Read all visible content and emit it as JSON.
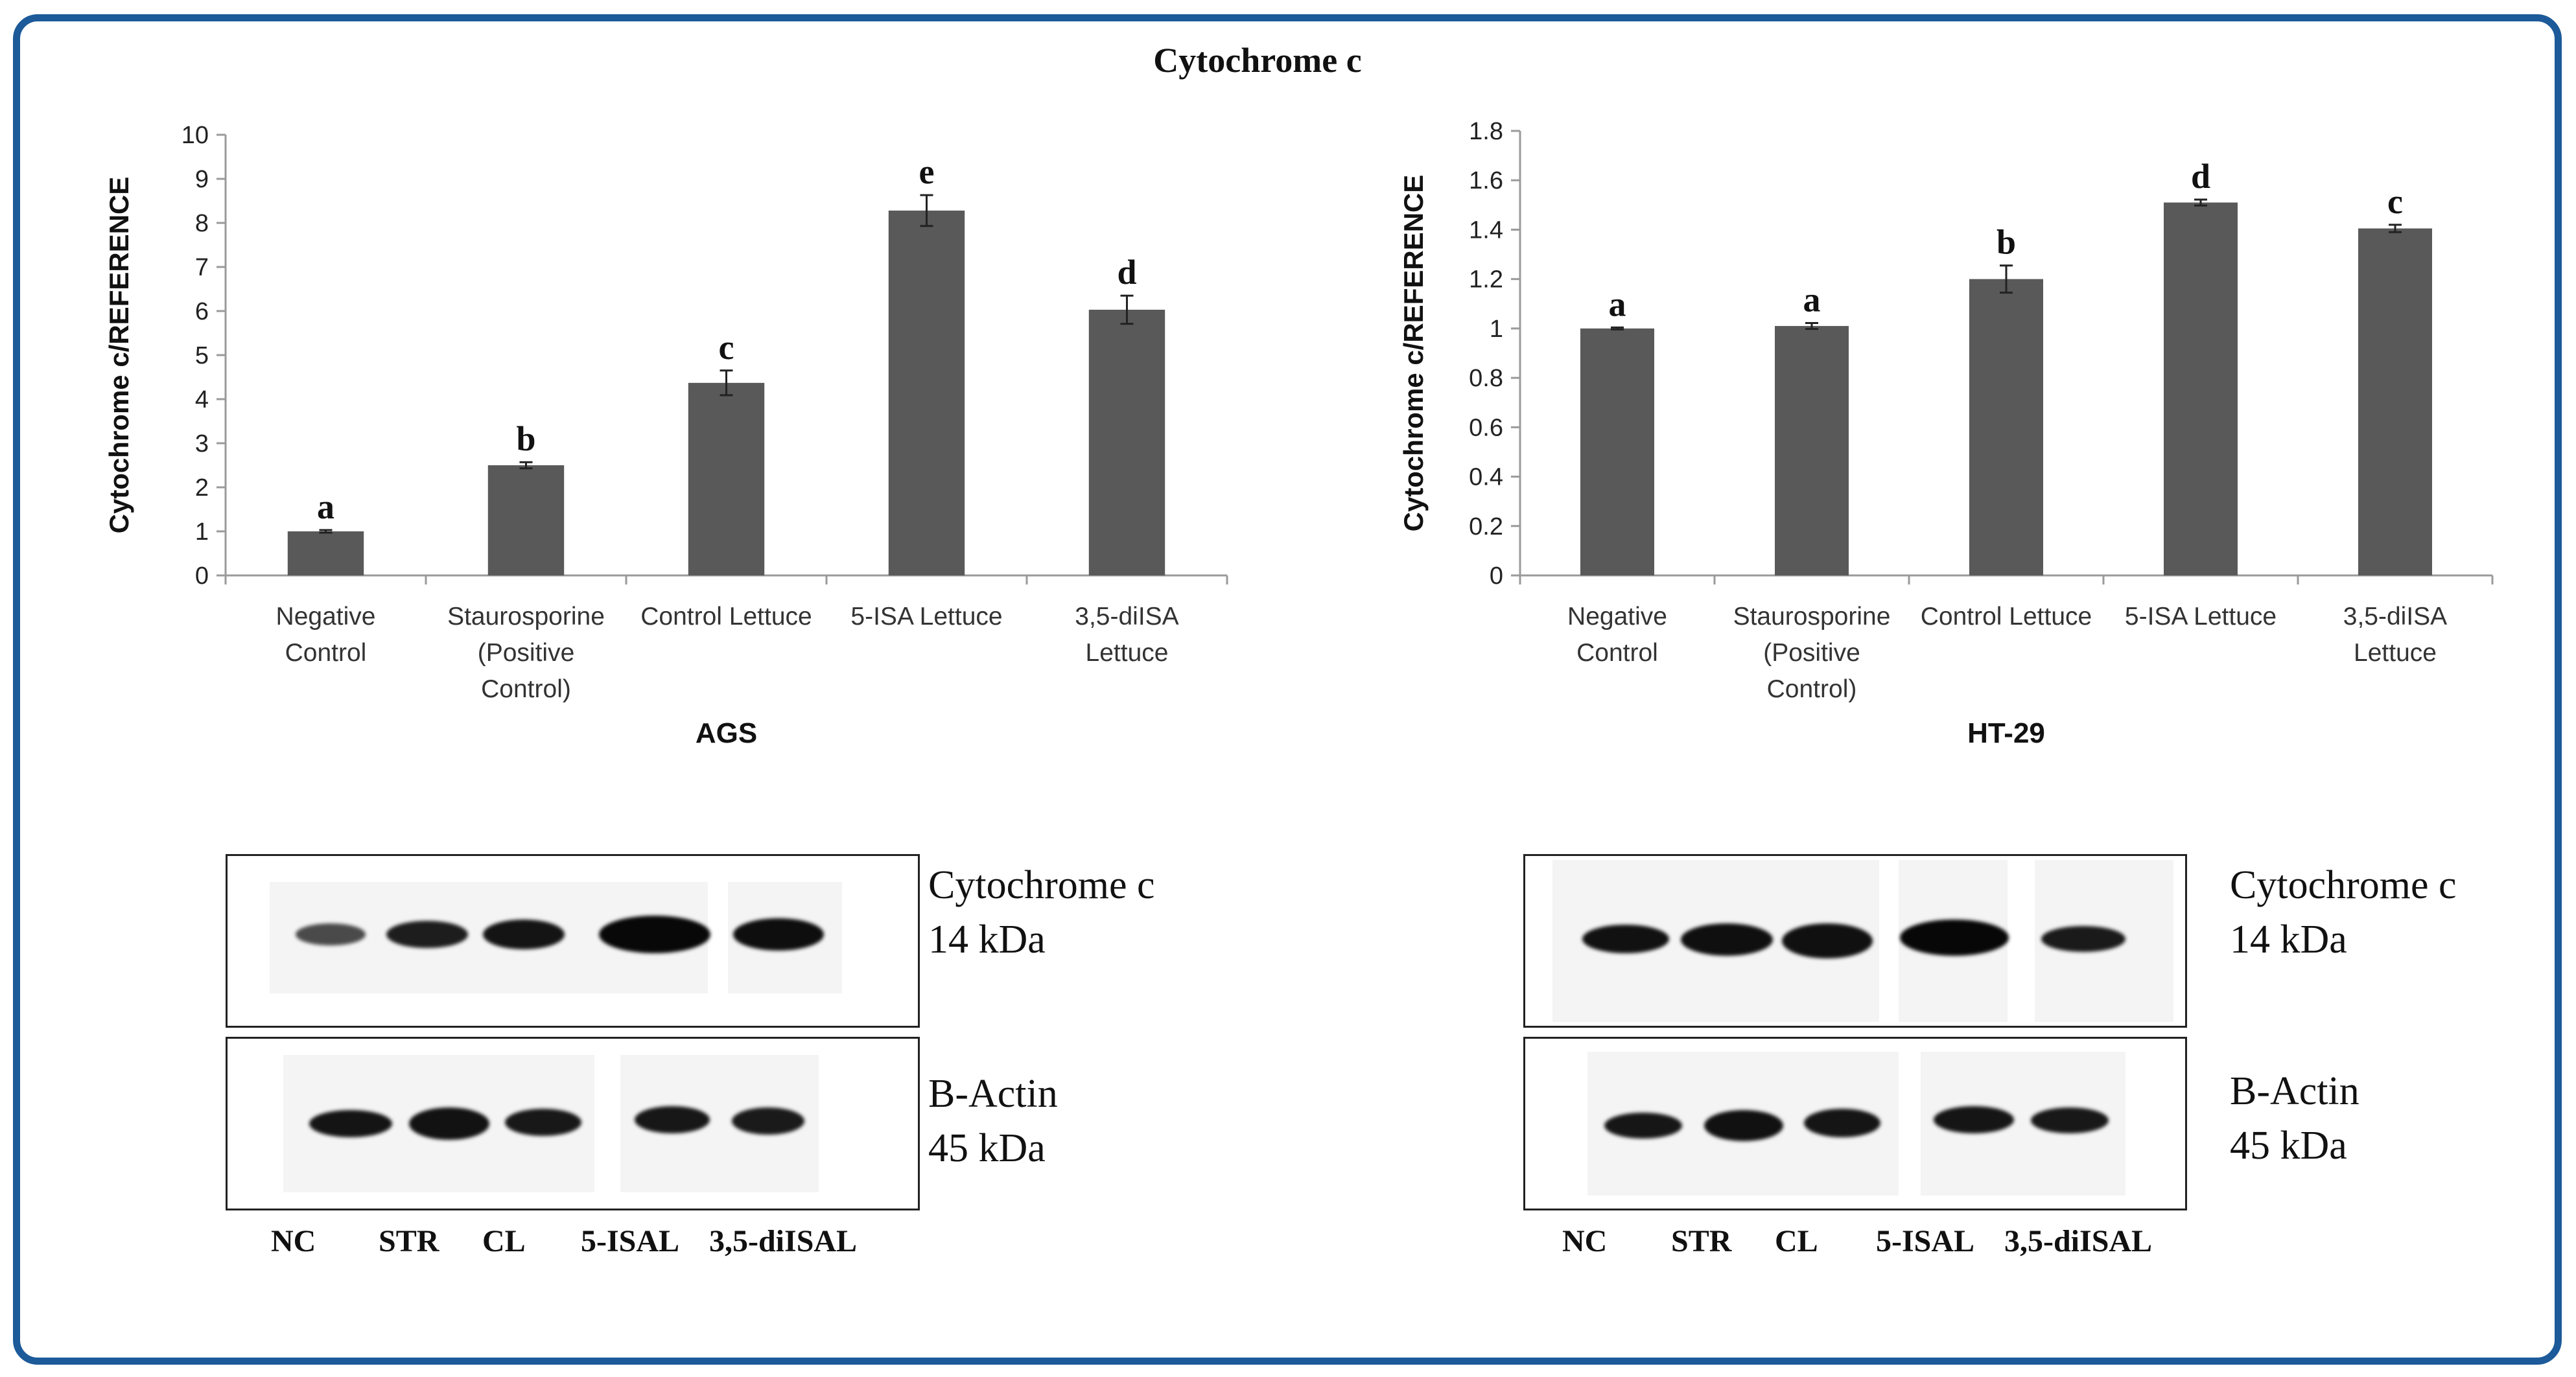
{
  "figure_title": "Cytochrome c",
  "chart_data": [
    {
      "type": "bar",
      "title": "",
      "xlabel": "AGS",
      "ylabel": "Cytochrome c/REFERENCE",
      "ylim": [
        0,
        10
      ],
      "yticks": [
        "0",
        "1",
        "2",
        "3",
        "4",
        "5",
        "6",
        "7",
        "8",
        "9",
        "10"
      ],
      "grid": false,
      "categories": [
        [
          "Negative",
          "Control"
        ],
        [
          "Staurosporine",
          "(Positive",
          "Control)"
        ],
        [
          "Control Lettuce"
        ],
        [
          "5-ISA Lettuce"
        ],
        [
          "3,5-diISA",
          "Lettuce"
        ]
      ],
      "values": [
        1.0,
        2.5,
        4.37,
        8.28,
        6.03
      ],
      "errors": [
        0.03,
        0.07,
        0.28,
        0.35,
        0.32
      ],
      "letters": [
        "a",
        "b",
        "c",
        "e",
        "d"
      ],
      "bar_color": "#595959"
    },
    {
      "type": "bar",
      "title": "",
      "xlabel": "HT-29",
      "ylabel": "Cytochrome c/REFERENCE",
      "ylim": [
        0,
        1.8
      ],
      "yticks": [
        "0",
        "0.2",
        "0.4",
        "0.6",
        "0.8",
        "1",
        "1.2",
        "1.4",
        "1.6",
        "1.8"
      ],
      "grid": false,
      "categories": [
        [
          "Negative",
          "Control"
        ],
        [
          "Staurosporine",
          "(Positive",
          "Control)"
        ],
        [
          "Control Lettuce"
        ],
        [
          "5-ISA Lettuce"
        ],
        [
          "3,5-diISA",
          "Lettuce"
        ]
      ],
      "values": [
        1.0,
        1.01,
        1.2,
        1.51,
        1.405
      ],
      "errors": [
        0.004,
        0.012,
        0.055,
        0.012,
        0.015
      ],
      "letters": [
        "a",
        "a",
        "b",
        "d",
        "c"
      ],
      "bar_color": "#595959"
    }
  ],
  "blots": [
    {
      "panel": "AGS",
      "rows": [
        {
          "protein": "Cytochrome c",
          "size": "14 kDa"
        },
        {
          "protein": "B-Actin",
          "size": "45 kDa"
        }
      ],
      "lanes": [
        "NC",
        "STR",
        "CL",
        "5-ISAL",
        "3,5-diISAL"
      ]
    },
    {
      "panel": "HT-29",
      "rows": [
        {
          "protein": "Cytochrome c",
          "size": "14 kDa"
        },
        {
          "protein": "B-Actin",
          "size": "45 kDa"
        }
      ],
      "lanes": [
        "NC",
        "STR",
        "CL",
        "5-ISAL",
        "3,5-diISAL"
      ]
    }
  ]
}
